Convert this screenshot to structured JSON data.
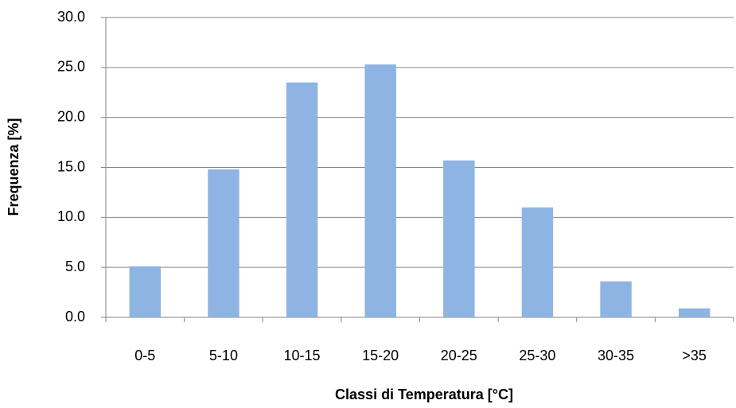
{
  "chart_data": {
    "type": "bar",
    "x_label": "Classi di Temperatura [°C]",
    "y_label": "Frequenza [%]",
    "categories": [
      "0-5",
      "5-10",
      "10-15",
      "15-20",
      "20-25",
      "25-30",
      "30-35",
      ">35"
    ],
    "values": [
      5.1,
      14.8,
      23.5,
      25.3,
      15.7,
      11.0,
      3.6,
      0.9
    ],
    "color": "#8eb4e3",
    "ylim": [
      0,
      30
    ],
    "yticks": [
      {
        "value": 0,
        "label": "0.0"
      },
      {
        "value": 5,
        "label": "5.0"
      },
      {
        "value": 10,
        "label": "10.0"
      },
      {
        "value": 15,
        "label": "15.0"
      },
      {
        "value": 20,
        "label": "20.0"
      },
      {
        "value": 25,
        "label": "25.0"
      },
      {
        "value": 30,
        "label": "30.0"
      }
    ],
    "grid": true
  }
}
